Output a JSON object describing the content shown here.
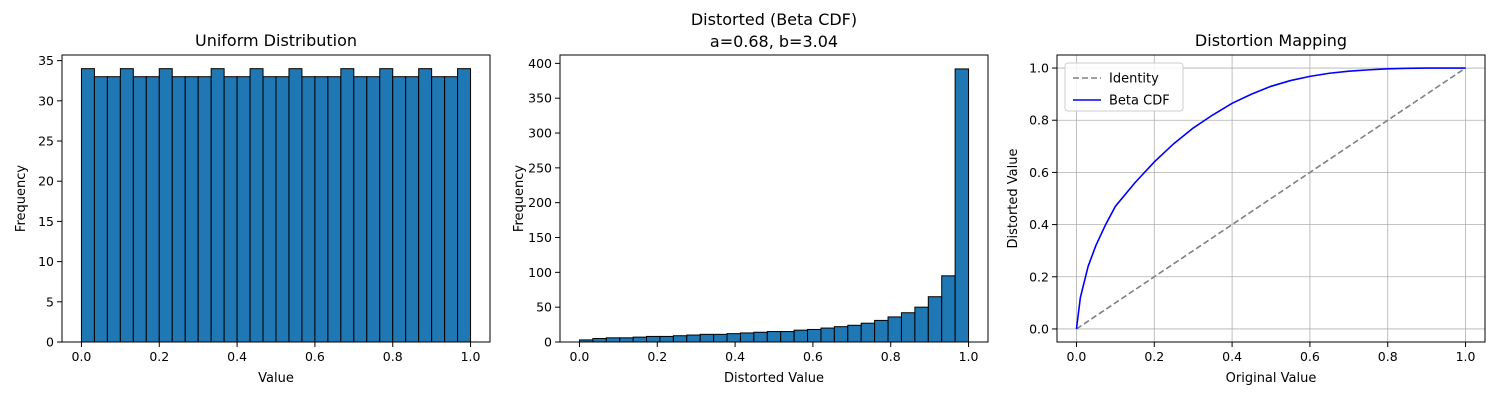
{
  "chart_data": [
    {
      "type": "bar",
      "title": "Uniform Distribution",
      "xlabel": "Value",
      "ylabel": "Frequency",
      "xlim": [
        -0.05,
        1.05
      ],
      "ylim": [
        0,
        35.7
      ],
      "xticks": [
        "0.0",
        "0.2",
        "0.4",
        "0.6",
        "0.8",
        "1.0"
      ],
      "yticks": [
        "0",
        "5",
        "10",
        "15",
        "20",
        "25",
        "30",
        "35"
      ],
      "bin_range": [
        0,
        1
      ],
      "values": [
        34,
        33,
        33,
        34,
        33,
        33,
        34,
        33,
        33,
        33,
        34,
        33,
        33,
        34,
        33,
        33,
        34,
        33,
        33,
        33,
        34,
        33,
        33,
        34,
        33,
        33,
        34,
        33,
        33,
        34
      ],
      "bar_color": "#1f77b4",
      "edge_color": "#000000",
      "grid": false
    },
    {
      "type": "bar",
      "title": "Distorted (Beta CDF)\na=0.68, b=3.04",
      "xlabel": "Distorted Value",
      "ylabel": "Frequency",
      "xlim": [
        -0.05,
        1.05
      ],
      "ylim": [
        0,
        412
      ],
      "xticks": [
        "0.0",
        "0.2",
        "0.4",
        "0.6",
        "0.8",
        "1.0"
      ],
      "yticks": [
        "0",
        "50",
        "100",
        "150",
        "200",
        "250",
        "300",
        "350",
        "400"
      ],
      "bin_range": [
        0,
        1
      ],
      "values": [
        3,
        5,
        6,
        6,
        7,
        8,
        8,
        9,
        10,
        11,
        11,
        12,
        13,
        14,
        15,
        15,
        17,
        18,
        20,
        22,
        24,
        27,
        31,
        36,
        42,
        50,
        65,
        95,
        392
      ],
      "bar_color": "#1f77b4",
      "edge_color": "#000000",
      "grid": false
    },
    {
      "type": "line",
      "title": "Distortion Mapping",
      "xlabel": "Original Value",
      "ylabel": "Distorted Value",
      "xlim": [
        -0.05,
        1.05
      ],
      "ylim": [
        -0.05,
        1.05
      ],
      "xticks": [
        "0.0",
        "0.2",
        "0.4",
        "0.6",
        "0.8",
        "1.0"
      ],
      "yticks": [
        "0.0",
        "0.2",
        "0.4",
        "0.6",
        "0.8",
        "1.0"
      ],
      "grid": true,
      "legend": "top-left",
      "series": [
        {
          "name": "Identity",
          "color": "#808080",
          "style": "dashed",
          "x": [
            0,
            1
          ],
          "y": [
            0,
            1
          ]
        },
        {
          "name": "Beta CDF",
          "color": "#0000ff",
          "style": "solid",
          "x": [
            0,
            0.01,
            0.02,
            0.03,
            0.05,
            0.075,
            0.1,
            0.15,
            0.2,
            0.25,
            0.3,
            0.35,
            0.4,
            0.45,
            0.5,
            0.55,
            0.6,
            0.65,
            0.7,
            0.75,
            0.8,
            0.85,
            0.9,
            0.95,
            1.0
          ],
          "y": [
            0,
            0.12,
            0.18,
            0.24,
            0.32,
            0.4,
            0.47,
            0.56,
            0.64,
            0.71,
            0.77,
            0.82,
            0.865,
            0.9,
            0.93,
            0.952,
            0.968,
            0.98,
            0.988,
            0.993,
            0.997,
            0.999,
            1.0,
            1.0,
            1.0
          ]
        }
      ]
    }
  ]
}
